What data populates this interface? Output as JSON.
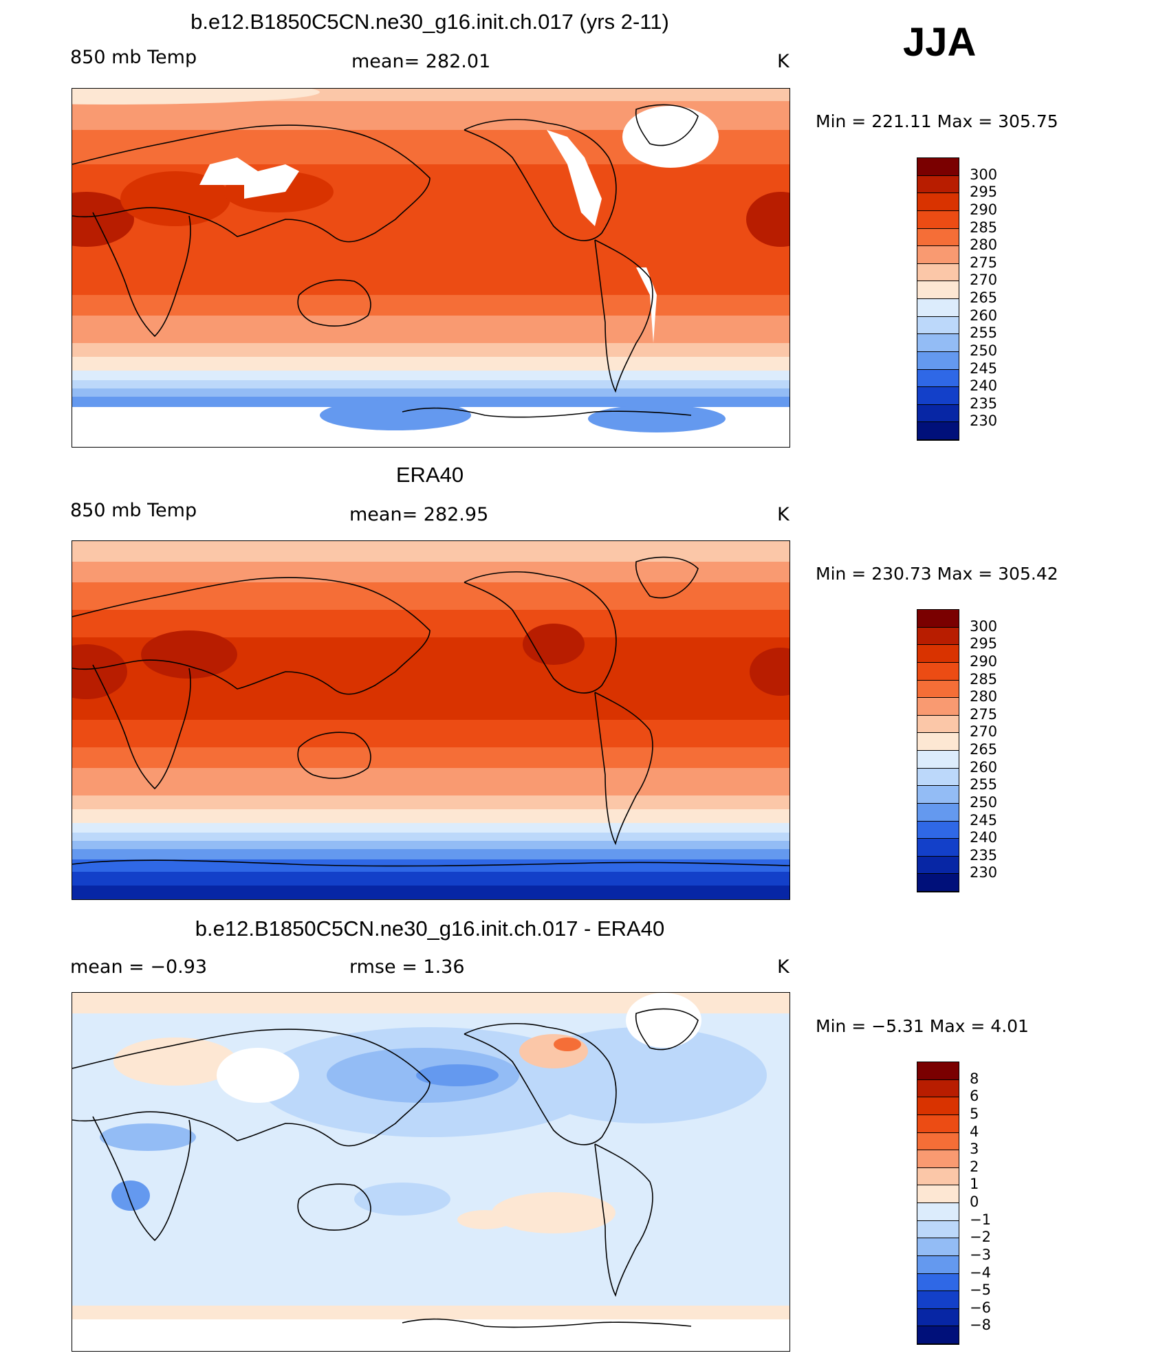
{
  "season": "JJA",
  "panels": [
    {
      "title": "b.e12.B1850C5CN.ne30_g16.init.ch.017 (yrs 2-11)",
      "left_label": "850 mb Temp",
      "center_label": "mean=  282.01",
      "right_label": "K",
      "minmax": "Min  =  221.11  Max  =  305.75",
      "colorbar": {
        "labels": [
          "300",
          "295",
          "290",
          "285",
          "280",
          "275",
          "270",
          "265",
          "260",
          "255",
          "250",
          "245",
          "240",
          "235",
          "230"
        ],
        "colors": [
          "#7a0000",
          "#b81d00",
          "#d93300",
          "#ec4c14",
          "#f56e37",
          "#f99a71",
          "#fbc7a8",
          "#fde7d3",
          "#dcecfc",
          "#bcd8fa",
          "#93bcf5",
          "#6499ef",
          "#2f68e6",
          "#1340c9",
          "#0726a5",
          "#00107a"
        ]
      }
    },
    {
      "title": "ERA40",
      "left_label": "850 mb Temp",
      "center_label": "mean=  282.95",
      "right_label": "K",
      "minmax": "Min  =  230.73  Max  =  305.42",
      "colorbar": {
        "labels": [
          "300",
          "295",
          "290",
          "285",
          "280",
          "275",
          "270",
          "265",
          "260",
          "255",
          "250",
          "245",
          "240",
          "235",
          "230"
        ],
        "colors": [
          "#7a0000",
          "#b81d00",
          "#d93300",
          "#ec4c14",
          "#f56e37",
          "#f99a71",
          "#fbc7a8",
          "#fde7d3",
          "#dcecfc",
          "#bcd8fa",
          "#93bcf5",
          "#6499ef",
          "#2f68e6",
          "#1340c9",
          "#0726a5",
          "#00107a"
        ]
      }
    },
    {
      "title": "b.e12.B1850C5CN.ne30_g16.init.ch.017 - ERA40",
      "left_label": "mean =    −0.93",
      "center_label": "rmse =     1.36",
      "right_label": "K",
      "minmax": "Min  =    −5.31  Max  =     4.01",
      "colorbar": {
        "labels": [
          "8",
          "6",
          "5",
          "4",
          "3",
          "2",
          "1",
          "0",
          "−1",
          "−2",
          "−3",
          "−4",
          "−5",
          "−6",
          "−8"
        ],
        "colors": [
          "#7a0000",
          "#b81d00",
          "#d93300",
          "#ec4c14",
          "#f56e37",
          "#f99a71",
          "#fbc7a8",
          "#fde7d3",
          "#dcecfc",
          "#bcd8fa",
          "#93bcf5",
          "#6499ef",
          "#2f68e6",
          "#1340c9",
          "#0726a5",
          "#00107a"
        ]
      }
    }
  ]
}
